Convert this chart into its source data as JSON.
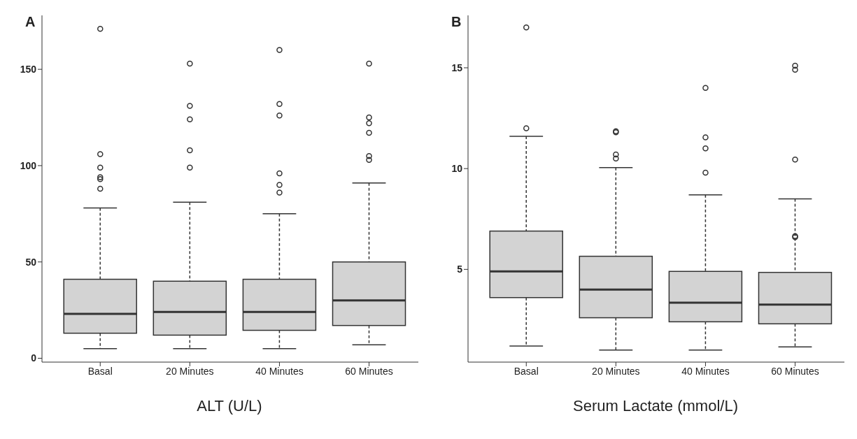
{
  "chart_data": [
    {
      "type": "box",
      "title": "A",
      "xlabel": "ALT (U/L)",
      "categories": [
        "Basal",
        "20 Minutes",
        "40 Minutes",
        "60 Minutes"
      ],
      "color": "#d3d3d3",
      "ylim": [
        -2,
        178
      ],
      "yticks": [
        0,
        50,
        100,
        150
      ],
      "boxes": [
        {
          "low": 5,
          "q1": 13,
          "median": 23,
          "q3": 41,
          "high": 78,
          "outliers": [
            88,
            93,
            94,
            99,
            106,
            171
          ]
        },
        {
          "low": 5,
          "q1": 12,
          "median": 24,
          "q3": 40,
          "high": 81,
          "outliers": [
            99,
            108,
            124,
            131,
            153
          ]
        },
        {
          "low": 5,
          "q1": 14.5,
          "median": 24,
          "q3": 41,
          "high": 75,
          "outliers": [
            86,
            90,
            96,
            126,
            132,
            160
          ]
        },
        {
          "low": 7,
          "q1": 17,
          "median": 30,
          "q3": 50,
          "high": 91,
          "outliers": [
            103,
            105,
            117,
            122,
            125,
            153
          ]
        }
      ]
    },
    {
      "type": "box",
      "title": "B",
      "xlabel": "Serum Lactate  (mmol/L)",
      "categories": [
        "Basal",
        "20 Minutes",
        "40 Minutes",
        "60 Minutes"
      ],
      "color": "#d3d3d3",
      "ylim": [
        0.4,
        17.6
      ],
      "yticks": [
        5,
        10,
        15
      ],
      "boxes": [
        {
          "low": 1.2,
          "q1": 3.6,
          "median": 4.9,
          "q3": 6.9,
          "high": 11.6,
          "outliers": [
            12.0,
            17.0
          ]
        },
        {
          "low": 1.0,
          "q1": 2.6,
          "median": 4.0,
          "q3": 5.65,
          "high": 10.05,
          "outliers": [
            10.5,
            10.7,
            11.8,
            11.85
          ]
        },
        {
          "low": 1.0,
          "q1": 2.4,
          "median": 3.35,
          "q3": 4.9,
          "high": 8.7,
          "outliers": [
            9.8,
            11.0,
            11.55,
            14.0
          ]
        },
        {
          "low": 1.15,
          "q1": 2.3,
          "median": 3.25,
          "q3": 4.85,
          "high": 8.5,
          "outliers": [
            6.6,
            6.65,
            10.45,
            14.9,
            15.1
          ]
        }
      ]
    }
  ]
}
